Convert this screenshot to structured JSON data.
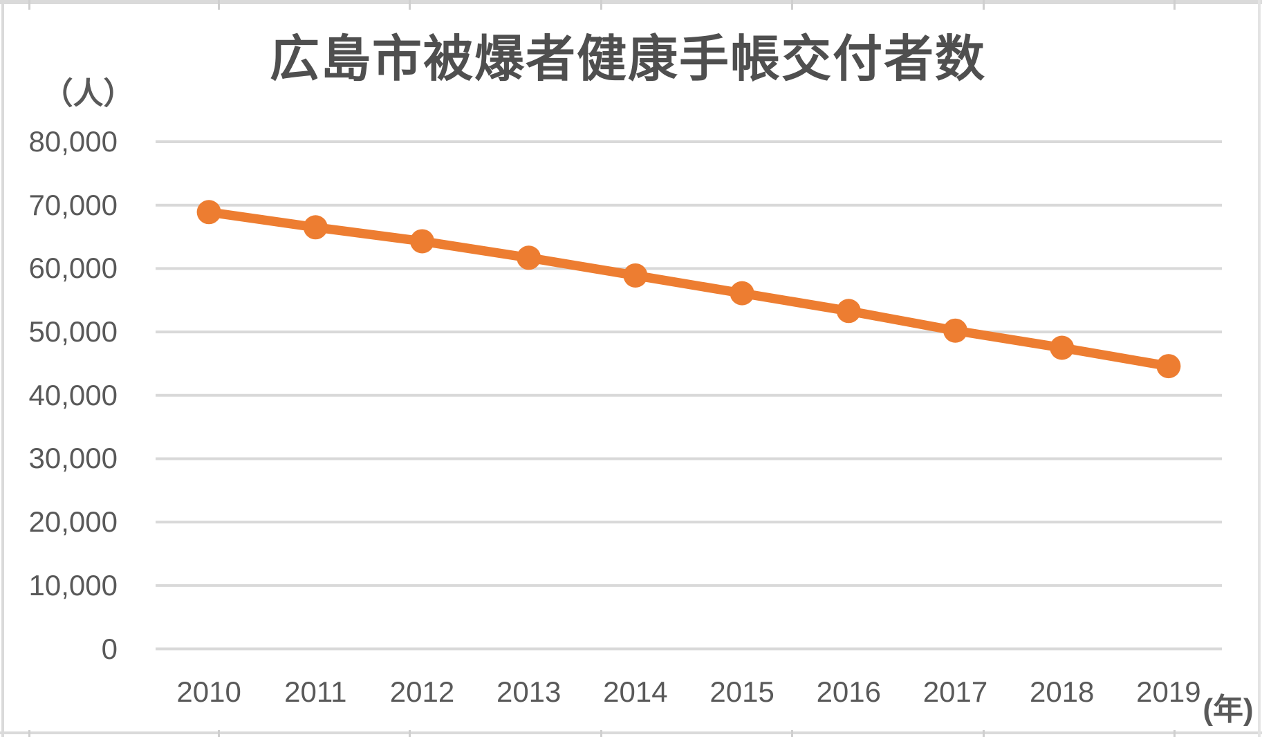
{
  "title": "広島市被爆者健康手帳交付者数",
  "y_axis": {
    "unit_label": "（人）",
    "tick_labels": [
      "0",
      "10,000",
      "20,000",
      "30,000",
      "40,000",
      "50,000",
      "60,000",
      "70,000",
      "80,000"
    ]
  },
  "x_axis": {
    "unit_label": "(年)",
    "tick_labels": [
      "2010",
      "2011",
      "2012",
      "2013",
      "2014",
      "2015",
      "2016",
      "2017",
      "2018",
      "2019"
    ]
  },
  "chart_data": {
    "type": "line",
    "title": "広島市被爆者健康手帳交付者数",
    "categories": [
      "2010",
      "2011",
      "2012",
      "2013",
      "2014",
      "2015",
      "2016",
      "2017",
      "2018",
      "2019"
    ],
    "values": [
      68900,
      66500,
      64300,
      61700,
      58900,
      56100,
      53300,
      50200,
      47500,
      44600
    ],
    "xlabel": "(年)",
    "ylabel": "（人）",
    "ylim": [
      0,
      80000
    ],
    "ytick_step": 10000,
    "grid": true,
    "legend": false,
    "marker": "circle"
  },
  "colors": {
    "accent_line": "#ED7D31",
    "gridline": "#D9D9D9",
    "axis_text": "#595959",
    "title_text": "#4F4F4F",
    "sheet_border": "#DADADA"
  }
}
